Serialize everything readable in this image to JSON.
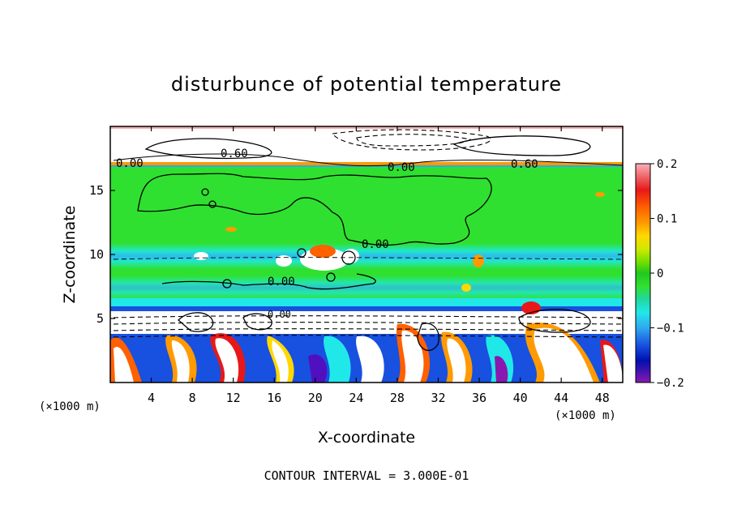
{
  "chart_data": {
    "type": "heatmap",
    "title": "disturbunce of potential temperature",
    "xlabel": "X-coordinate",
    "ylabel": "Z-coordinate",
    "x_unit": "(×1000 m)",
    "x_unit_right": "(×1000 m)",
    "xlim": [
      0,
      50
    ],
    "ylim": [
      0,
      20
    ],
    "x_ticks": [
      4,
      8,
      12,
      16,
      20,
      24,
      28,
      32,
      36,
      40,
      44,
      48
    ],
    "y_ticks": [
      5,
      10,
      15
    ],
    "colorbar": {
      "range": [
        -0.2,
        0.2
      ],
      "tick_labels": [
        "0.2",
        "0.1",
        "0",
        "−0.1",
        "−0.2"
      ],
      "tick_values": [
        0.2,
        0.1,
        0,
        -0.1,
        -0.2
      ],
      "colors": [
        "#f8b0b8",
        "#e81818",
        "#ff6000",
        "#ff9a00",
        "#ffd800",
        "#d0e800",
        "#70e000",
        "#20c820",
        "#30e030",
        "#20d8a0",
        "#20e8e8",
        "#30a8f0",
        "#1850e0",
        "#0010b0",
        "#5010c0",
        "#8a18b0"
      ]
    },
    "contour_labels": [
      "0.60",
      "0.00",
      "0.00",
      "0.60",
      "0.00",
      "0.00",
      "0.00"
    ],
    "contour_interval": "CONTOUR INTERVAL = 3.000E-01",
    "bands": [
      {
        "z_from": 17.0,
        "z_to": 20.0,
        "level": "positive"
      },
      {
        "z_from": 10.8,
        "z_to": 17.0,
        "level": 0.0
      },
      {
        "z_from": 9.2,
        "z_to": 10.8,
        "level": -0.08
      },
      {
        "z_from": 6.5,
        "z_to": 9.2,
        "level": 0.0
      },
      {
        "z_from": 5.6,
        "z_to": 6.5,
        "level": -0.1
      },
      {
        "z_from": 4.3,
        "z_to": 5.6,
        "level": "negative"
      },
      {
        "z_from": 0.0,
        "z_to": 4.3,
        "level": "turbulent"
      }
    ]
  }
}
